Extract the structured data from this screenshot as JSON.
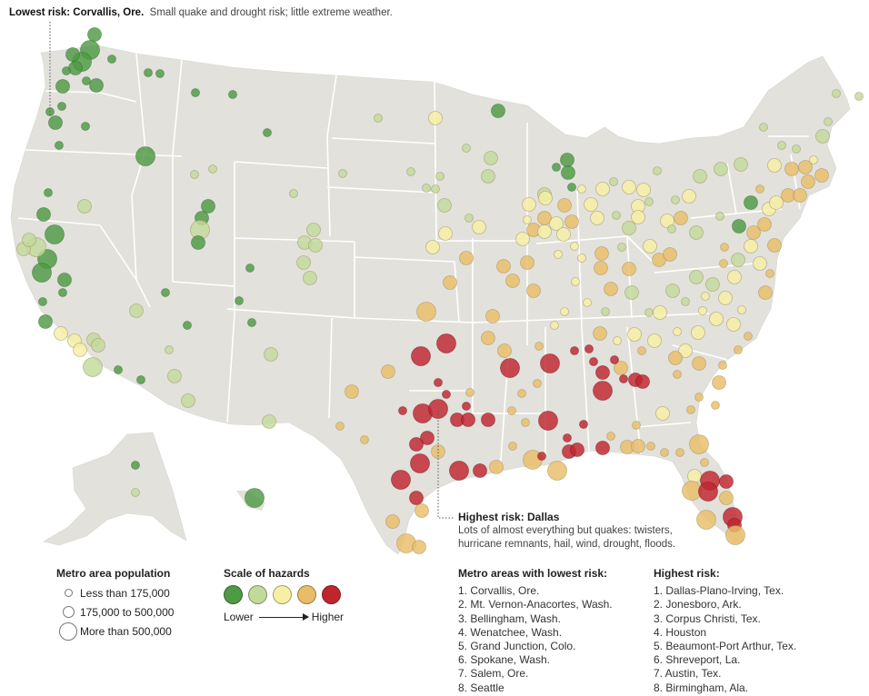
{
  "colors": {
    "land": "#e2e1dc",
    "border": "#ffffff",
    "hazard_levels": [
      "#4e9a45",
      "#c3d99a",
      "#f7efa3",
      "#e9bd68",
      "#c0252e"
    ]
  },
  "callouts": {
    "lowest_title": "Lowest risk: Corvallis, Ore.",
    "lowest_desc": "Small quake and drought risk; little extreme weather.",
    "highest_title": "Highest risk: Dallas",
    "highest_desc": "Lots of almost everything but quakes: twisters, hurricane remnants, hail, wind, drought, floods."
  },
  "legend_population": {
    "title": "Metro area population",
    "items": [
      "Less than 175,000",
      "175,000 to 500,000",
      "More than 500,000"
    ]
  },
  "legend_hazards": {
    "title": "Scale of hazards",
    "low_label": "Lower",
    "high_label": "Higher"
  },
  "lowest_risk": {
    "title": "Metro areas with lowest risk:",
    "items": [
      "1. Corvallis, Ore.",
      "2. Mt. Vernon-Anacortes, Wash.",
      "3. Bellingham, Wash.",
      "4. Wenatchee, Wash.",
      "5. Grand Junction, Colo.",
      "6. Spokane, Wash.",
      "7. Salem, Ore.",
      "8. Seattle"
    ]
  },
  "highest_risk": {
    "title": "Highest risk:",
    "items": [
      "1. Dallas-Plano-Irving, Tex.",
      "2. Jonesboro, Ark.",
      "3. Corpus Christi, Tex.",
      "4. Houston",
      "5. Beaumont-Port Arthur, Tex.",
      "6. Shreveport, La.",
      "7. Austin, Tex.",
      "8. Birmingham, Ala."
    ]
  }
}
